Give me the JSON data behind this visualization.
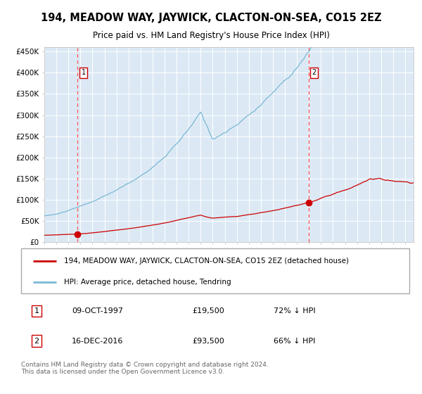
{
  "title": "194, MEADOW WAY, JAYWICK, CLACTON-ON-SEA, CO15 2EZ",
  "subtitle": "Price paid vs. HM Land Registry's House Price Index (HPI)",
  "plot_bg_color": "#dce9f5",
  "hpi_color": "#7ab8d4",
  "price_color": "#cc0000",
  "vline_color": "#ff5555",
  "sale1_date_num": 1997.77,
  "sale1_price": 19500,
  "sale1_date_str": "09-OCT-1997",
  "sale1_pct": "72% ↓ HPI",
  "sale2_date_num": 2016.96,
  "sale2_price": 93500,
  "sale2_date_str": "16-DEC-2016",
  "sale2_pct": "66% ↓ HPI",
  "ylim": [
    0,
    460000
  ],
  "xlim_start": 1995.0,
  "xlim_end": 2025.7,
  "legend_line1": "194, MEADOW WAY, JAYWICK, CLACTON-ON-SEA, CO15 2EZ (detached house)",
  "legend_line2": "HPI: Average price, detached house, Tendring",
  "footer": "Contains HM Land Registry data © Crown copyright and database right 2024.\nThis data is licensed under the Open Government Licence v3.0.",
  "yticks": [
    0,
    50000,
    100000,
    150000,
    200000,
    250000,
    300000,
    350000,
    400000,
    450000
  ],
  "ytick_labels": [
    "£0",
    "£50K",
    "£100K",
    "£150K",
    "£200K",
    "£250K",
    "£300K",
    "£350K",
    "£400K",
    "£450K"
  ]
}
